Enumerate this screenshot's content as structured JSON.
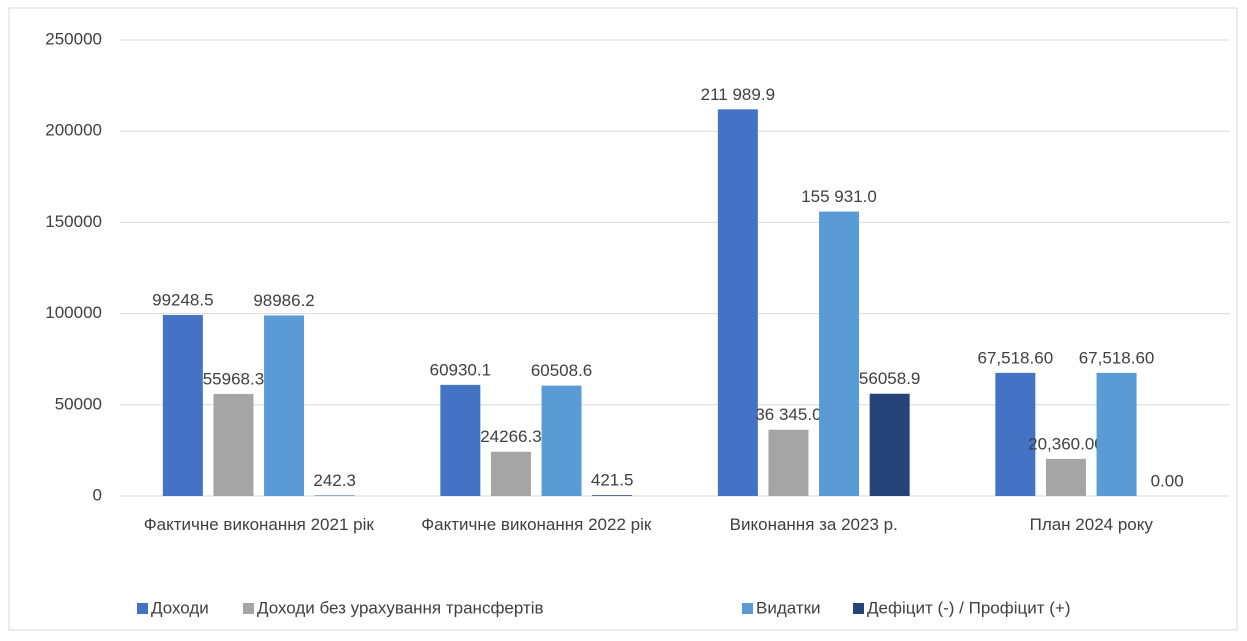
{
  "chart_data": {
    "type": "bar",
    "categories": [
      "Фактичне виконання 2021 рік",
      "Фактичне виконання 2022 рік",
      "Виконання за 2023 р.",
      "План 2024 року"
    ],
    "series": [
      {
        "name": "Доходи",
        "color": "#4472c4",
        "values": [
          99248.5,
          60930.1,
          211989.9,
          67518.6
        ],
        "value_labels": [
          "99248.5",
          "60930.1",
          "211 989.9",
          "67,518.60"
        ]
      },
      {
        "name": "Доходи без урахування трансфертів",
        "color": "#a5a5a5",
        "values": [
          55968.3,
          24266.3,
          36345.0,
          20360.0
        ],
        "value_labels": [
          "55968.3",
          "24266.3",
          "36 345.0",
          "20,360.00"
        ]
      },
      {
        "name": "Видатки",
        "color": "#5b9bd5",
        "values": [
          98986.2,
          60508.6,
          155931.0,
          67518.6
        ],
        "value_labels": [
          "98986.2",
          "60508.6",
          "155 931.0",
          "67,518.60"
        ]
      },
      {
        "name": "Дефіцит (-) / Профіцит (+)",
        "color": "#264478",
        "values": [
          242.3,
          421.5,
          56058.9,
          0
        ],
        "value_labels": [
          "242.3",
          "421.5",
          "56058.9",
          "0.00"
        ]
      }
    ],
    "ylim": [
      0,
      250000
    ],
    "yticks": [
      0,
      50000,
      100000,
      150000,
      200000,
      250000
    ],
    "grid": true,
    "legend": "bottom"
  }
}
